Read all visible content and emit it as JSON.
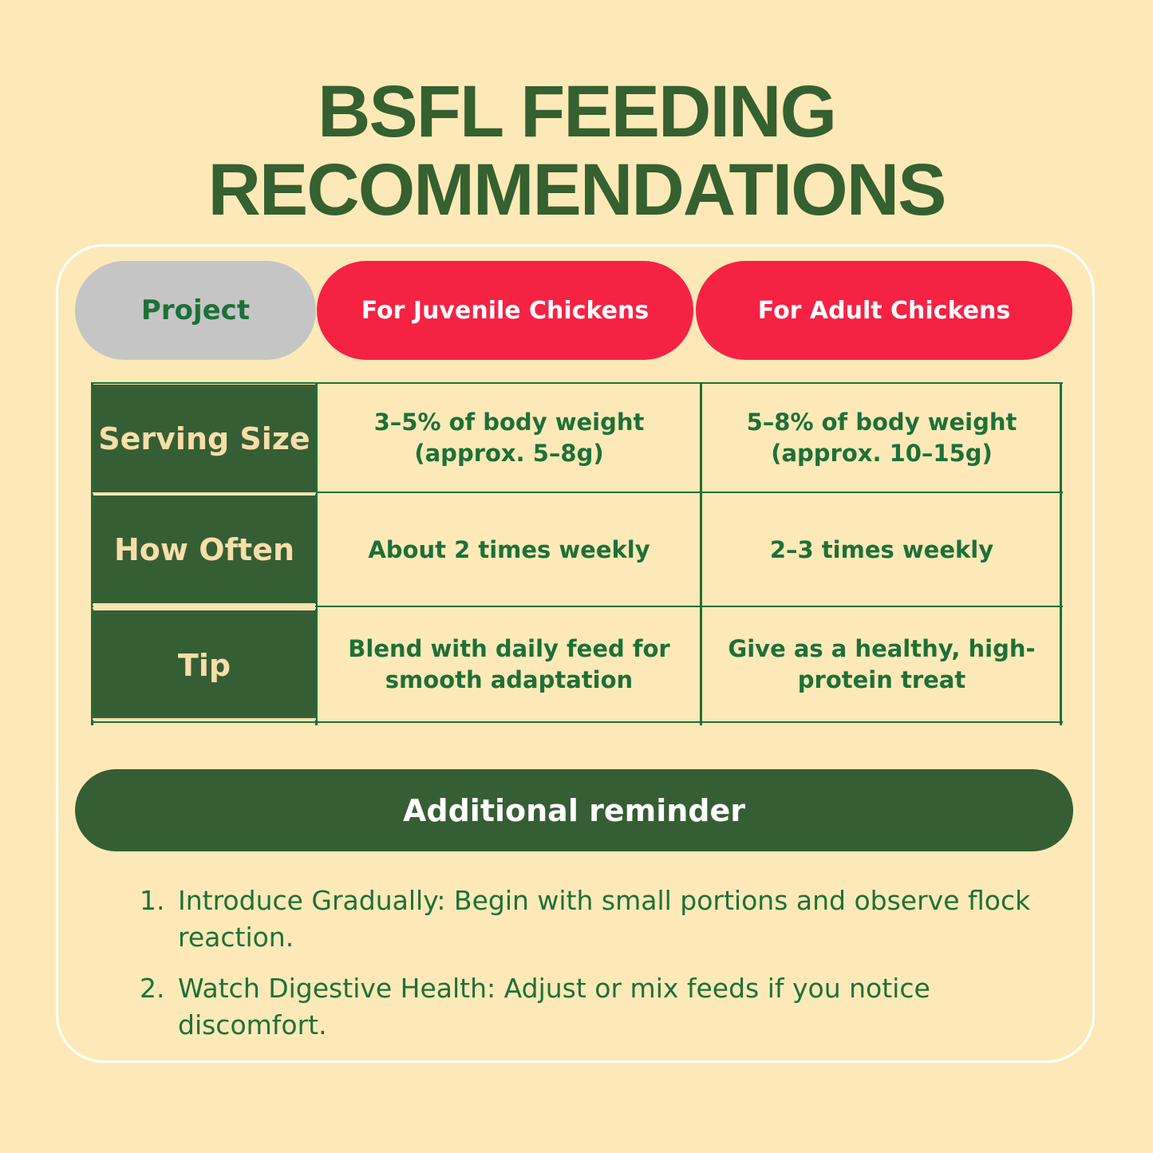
{
  "title": {
    "line1": "BSFL FEEDING",
    "line2": "RECOMMENDATIONS"
  },
  "columns": {
    "project": "Project",
    "juvenile": "For Juvenile Chickens",
    "adult": "For Adult Chickens"
  },
  "rows": [
    {
      "label": "Serving Size",
      "juvenile": "3–5% of body weight (approx. 5–8g)",
      "adult": "5–8% of body weight (approx. 10–15g)"
    },
    {
      "label": "How Often",
      "juvenile": "About 2 times weekly",
      "adult": "2–3 times weekly"
    },
    {
      "label": "Tip",
      "juvenile": "Blend with daily feed for smooth adaptation",
      "adult": "Give as a healthy, high-protein treat"
    }
  ],
  "reminder": {
    "heading": "Additional reminder",
    "items": [
      {
        "number": "1.",
        "text": "Introduce Gradually: Begin with small portions and observe flock reaction."
      },
      {
        "number": "2.",
        "text": "Watch Digestive Health: Adjust or mix feeds if you notice discomfort."
      }
    ]
  },
  "colors": {
    "background": "#fde9b7",
    "dark_green": "#365e34",
    "text_green": "#1d7038",
    "red": "#f52244",
    "gray": "#c5c5c5"
  }
}
